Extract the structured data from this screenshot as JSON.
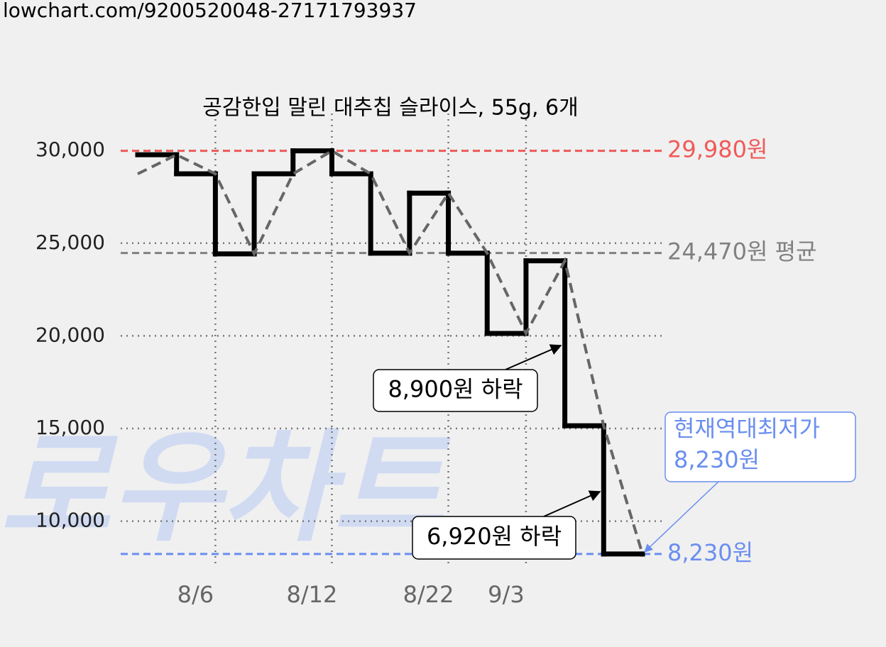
{
  "source": "lowchart.com/9200520048-27171793937",
  "watermark": "로우차트",
  "chart_data": {
    "type": "line",
    "title": "공감한입 말린 대추칩 슬라이스, 55g, 6개",
    "categories": [
      null,
      null,
      "8/6",
      null,
      null,
      "8/12",
      null,
      null,
      "8/22",
      null,
      "9/3",
      null,
      null,
      null
    ],
    "series": [
      {
        "style": "step",
        "color": "#000000",
        "values": [
          29770,
          28740,
          24420,
          28740,
          29980,
          28740,
          24460,
          27700,
          24460,
          20130,
          24050,
          15150,
          8230,
          8230
        ]
      },
      {
        "style": "dashed",
        "color": "#666666",
        "values": [
          28740,
          29770,
          28740,
          24420,
          28740,
          29980,
          28740,
          24460,
          27700,
          24460,
          20130,
          24050,
          15150,
          8230
        ]
      }
    ],
    "ylim": [
      7500,
      31000
    ],
    "yticks": [
      {
        "value": 10000,
        "label": "10,000"
      },
      {
        "value": 15000,
        "label": "15,000"
      },
      {
        "value": 20000,
        "label": "20,000"
      },
      {
        "value": 25000,
        "label": "25,000"
      },
      {
        "value": 30000,
        "label": "30,000"
      }
    ],
    "grid": true,
    "reference_lines": [
      {
        "value": 29980,
        "label": "29,980원",
        "color": "#f05a5a"
      },
      {
        "value": 24470,
        "label": "24,470원 평균",
        "color": "#808080"
      },
      {
        "value": 8230,
        "label": "8,230원",
        "color": "#6a8ef0"
      }
    ],
    "annotations": [
      {
        "text": "8,900원 하락",
        "index": 11
      },
      {
        "text": "6,920원 하락",
        "index": 12
      },
      {
        "lines": [
          "현재역대최저가",
          "8,230원"
        ],
        "index": 13,
        "color": "#6a8ef0"
      }
    ]
  }
}
